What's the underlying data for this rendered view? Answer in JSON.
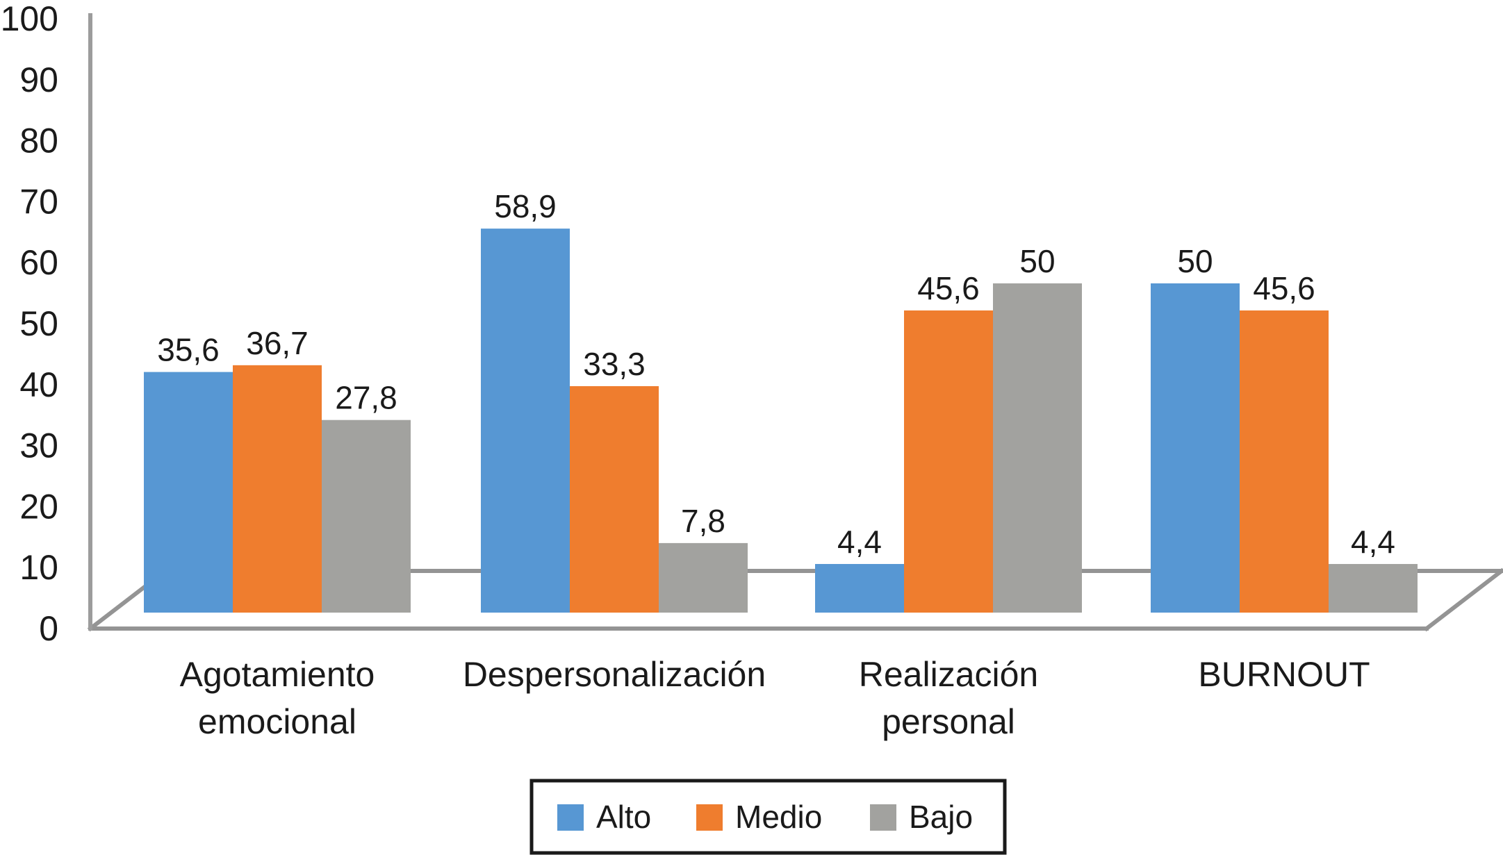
{
  "chart_data": {
    "type": "bar",
    "title": "",
    "xlabel": "",
    "ylabel": "",
    "categories": [
      {
        "label": "Agotamiento emocional",
        "lines": [
          "Agotamiento",
          "emocional"
        ]
      },
      {
        "label": "Despersonalización",
        "lines": [
          "Despersonalización"
        ]
      },
      {
        "label": "Realización personal",
        "lines": [
          "Realización",
          "personal"
        ]
      },
      {
        "label": "BURNOUT",
        "lines": [
          "BURNOUT"
        ]
      }
    ],
    "series": [
      {
        "name": "Alto",
        "color": "#5797D3",
        "values": [
          35.6,
          58.9,
          4.4,
          50
        ],
        "labels": [
          "35,6",
          "58,9",
          "4,4",
          "50"
        ]
      },
      {
        "name": "Medio",
        "color": "#EF7D2E",
        "values": [
          36.7,
          33.3,
          45.6,
          45.6
        ],
        "labels": [
          "36,7",
          "33,3",
          "45,6",
          "45,6"
        ]
      },
      {
        "name": "Bajo",
        "color": "#A2A29F",
        "values": [
          27.8,
          7.8,
          50,
          4.4
        ],
        "labels": [
          "27,8",
          "7,8",
          "50",
          "4,4"
        ]
      }
    ],
    "y_axis": {
      "min": 0,
      "max": 100,
      "step": 10,
      "tick_labels": [
        "0",
        "10",
        "20",
        "30",
        "40",
        "50",
        "60",
        "70",
        "80",
        "90",
        "100"
      ]
    },
    "legend": {
      "position": "bottom",
      "entries": [
        "Alto",
        "Medio",
        "Bajo"
      ]
    },
    "grid": false,
    "pseudo_3d_floor": true,
    "style": {
      "axis_line_color": "#9C9C9C",
      "floor_line_color": "#949494",
      "text_color": "#1A1A1A",
      "background": "#FFFFFF",
      "legend_border_color": "#1A1A1A"
    }
  }
}
